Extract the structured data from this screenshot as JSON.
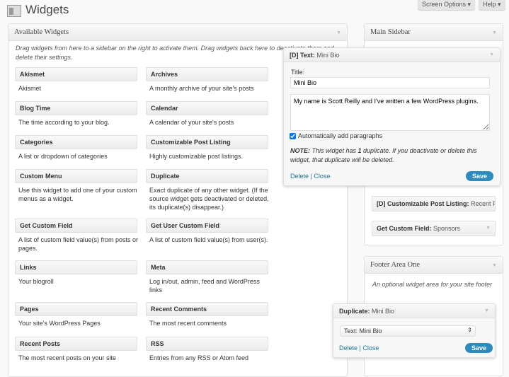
{
  "header": {
    "title": "Widgets",
    "screen_options": "Screen Options ▾",
    "help": "Help ▾"
  },
  "available": {
    "title": "Available Widgets",
    "description": "Drag widgets from here to a sidebar on the right to activate them. Drag widgets back here to deactivate them and delete their settings.",
    "widgets": [
      {
        "name": "Akismet",
        "desc": "Akismet"
      },
      {
        "name": "Archives",
        "desc": "A monthly archive of your site's posts"
      },
      {
        "name": "Blog Time",
        "desc": "The time according to your blog."
      },
      {
        "name": "Calendar",
        "desc": "A calendar of your site's posts"
      },
      {
        "name": "Categories",
        "desc": "A list or dropdown of categories"
      },
      {
        "name": "Customizable Post Listing",
        "desc": "Highly customizable post listings."
      },
      {
        "name": "Custom Menu",
        "desc": "Use this widget to add one of your custom menus as a widget."
      },
      {
        "name": "Duplicate",
        "desc": "Exact duplicate of any other widget. (If the source widget gets deactivated or deleted, its duplicate(s) disappear.)"
      },
      {
        "name": "Get Custom Field",
        "desc": "A list of custom field value(s) from posts or pages."
      },
      {
        "name": "Get User Custom Field",
        "desc": "A list of custom field value(s) from user(s)."
      },
      {
        "name": "Links",
        "desc": "Your blogroll"
      },
      {
        "name": "Meta",
        "desc": "Log in/out, admin, feed and WordPress links"
      },
      {
        "name": "Pages",
        "desc": "Your site's WordPress Pages"
      },
      {
        "name": "Recent Comments",
        "desc": "The most recent comments"
      },
      {
        "name": "Recent Posts",
        "desc": "The most recent posts on your site"
      },
      {
        "name": "RSS",
        "desc": "Entries from any RSS or Atom feed"
      }
    ]
  },
  "main_sidebar": {
    "title": "Main Sidebar",
    "widgets": [
      {
        "type": "[D] Customizable Post Listing:",
        "title": "Recent Posts"
      },
      {
        "type": "Get Custom Field:",
        "title": "Sponsors"
      }
    ]
  },
  "text_widget": {
    "type": "[D] Text:",
    "title_name": "Mini Bio",
    "title_label": "Title:",
    "title_value": "Mini Bio",
    "text": "My name is Scott Reilly and I've written a few WordPress plugins.",
    "auto_p_label": "Automatically add paragraphs",
    "auto_p_checked": true,
    "note_bold": "NOTE:",
    "note_1": " This widget has ",
    "note_count": "1",
    "note_2": " duplicate. If you deactivate or delete this widget, that duplicate will be deleted.",
    "delete": "Delete",
    "sep": "|",
    "close": "Close",
    "save": "Save"
  },
  "footer": {
    "title": "Footer Area One",
    "description": "An optional widget area for your site footer"
  },
  "dup_widget": {
    "type": "Duplicate:",
    "title_name": "Mini Bio",
    "select_value": "Text: Mini Bio",
    "delete": "Delete",
    "sep": "|",
    "close": "Close",
    "save": "Save"
  },
  "colors": {
    "link": "#21759b",
    "save_button": "#2e8bbd"
  }
}
